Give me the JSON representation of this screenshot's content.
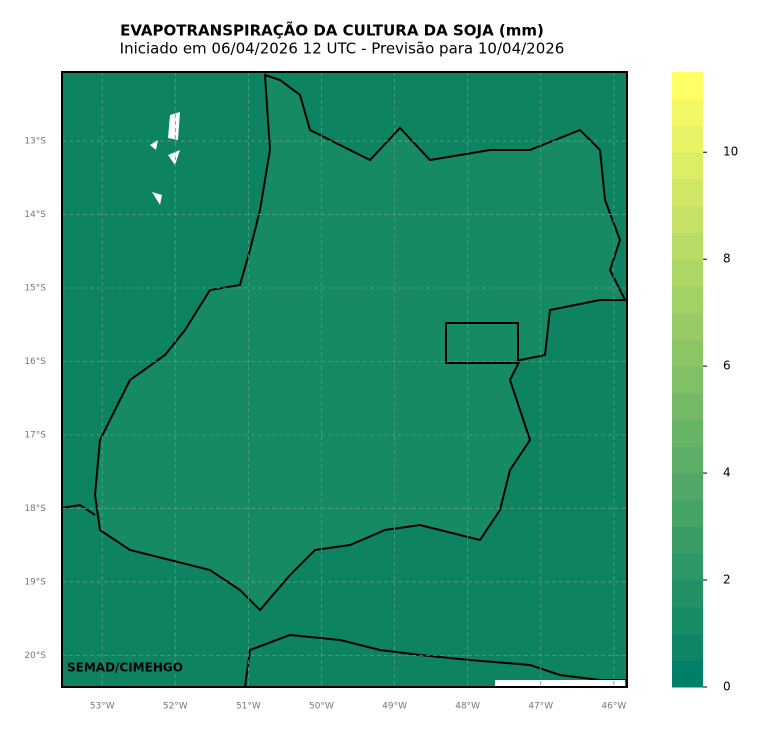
{
  "map": {
    "title": "EVAPOTRANSPIRAÇÃO DA CULTURA DA SOJA (mm)",
    "subtitle": "Iniciado em 06/04/2026 12 UTC - Previsão para 10/04/2026",
    "credit": "SEMAD/CIMEHGO",
    "xlim": [
      -53.55,
      -45.82
    ],
    "ylim": [
      -20.43,
      -12.06
    ],
    "lat_ticks": [
      {
        "value": -13,
        "label": "13°S"
      },
      {
        "value": -14,
        "label": "14°S"
      },
      {
        "value": -15,
        "label": "15°S"
      },
      {
        "value": -16,
        "label": "16°S"
      },
      {
        "value": -17,
        "label": "17°S"
      },
      {
        "value": -18,
        "label": "18°S"
      },
      {
        "value": -19,
        "label": "19°S"
      },
      {
        "value": -20,
        "label": "20°S"
      }
    ],
    "lon_ticks": [
      {
        "value": -53,
        "label": "53°W"
      },
      {
        "value": -52,
        "label": "52°W"
      },
      {
        "value": -51,
        "label": "51°W"
      },
      {
        "value": -50,
        "label": "50°W"
      },
      {
        "value": -49,
        "label": "49°W"
      },
      {
        "value": -48,
        "label": "48°W"
      },
      {
        "value": -47,
        "label": "47°W"
      },
      {
        "value": -46,
        "label": "46°W"
      }
    ]
  },
  "colorbar": {
    "range": [
      0,
      11.5
    ],
    "levels": [
      0,
      0.5,
      1,
      1.5,
      2,
      2.5,
      3,
      3.5,
      4,
      4.5,
      5,
      5.5,
      6,
      6.5,
      7,
      7.5,
      8,
      8.5,
      9,
      9.5,
      10,
      10.5,
      11
    ],
    "colormap": [
      "#008066",
      "#ffff66"
    ],
    "ticks": [
      0,
      2,
      4,
      6,
      8,
      10
    ]
  }
}
